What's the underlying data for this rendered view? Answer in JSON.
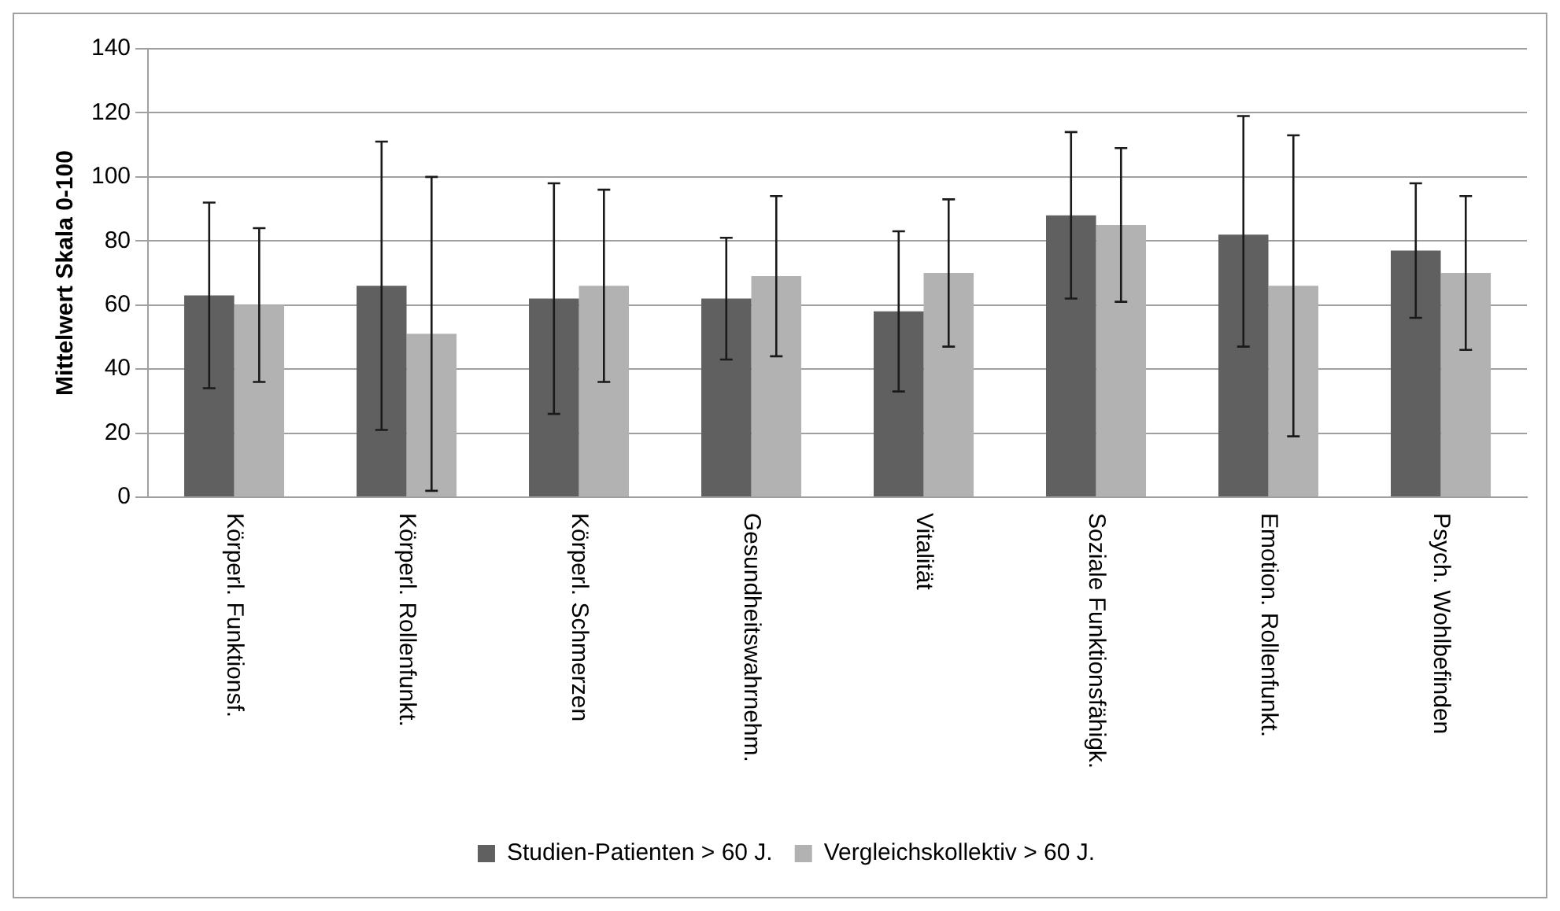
{
  "chart_data": {
    "type": "bar",
    "ylabel": "Mittelwert Skala 0-100",
    "categories": [
      "Körperl. Funktionsf.",
      "Körperl. Rollenfunkt.",
      "Körperl. Schmerzen",
      "Gesundheitswahrnehm.",
      "Vitalität",
      "Soziale Funktionsfähigk.",
      "Emotion. Rollenfunkt.",
      "Psych. Wohlbefinden"
    ],
    "series": [
      {
        "name": "Studien-Patienten > 60 J.",
        "color": "#606060",
        "values": [
          63,
          66,
          62,
          62,
          58,
          88,
          82,
          77
        ],
        "errors": [
          [
            34,
            92
          ],
          [
            21,
            111
          ],
          [
            26,
            98
          ],
          [
            43,
            81
          ],
          [
            33,
            83
          ],
          [
            62,
            114
          ],
          [
            47,
            119
          ],
          [
            56,
            98
          ]
        ]
      },
      {
        "name": "Vergleichskollektiv > 60 J.",
        "color": "#b2b2b2",
        "values": [
          60,
          51,
          66,
          69,
          70,
          85,
          66,
          70
        ],
        "errors": [
          [
            36,
            84
          ],
          [
            2,
            100
          ],
          [
            36,
            96
          ],
          [
            44,
            94
          ],
          [
            47,
            93
          ],
          [
            61,
            109
          ],
          [
            19,
            113
          ],
          [
            46,
            94
          ]
        ]
      }
    ],
    "ylim": [
      0,
      140
    ],
    "yticks": [
      0,
      20,
      40,
      60,
      80,
      100,
      120,
      140
    ],
    "grid": "y",
    "legend": "bottom"
  }
}
